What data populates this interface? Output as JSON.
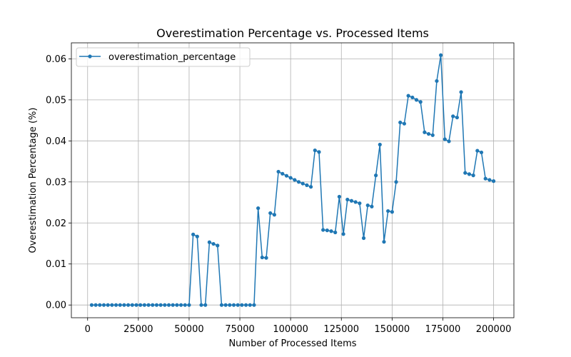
{
  "chart_data": {
    "type": "line",
    "title": "Overestimation Percentage vs. Processed Items",
    "xlabel": "Number of Processed Items",
    "ylabel": "Overestimation Percentage (%)",
    "xlim": [
      -8000,
      210000
    ],
    "ylim": [
      -0.0031,
      0.0639
    ],
    "grid": true,
    "legend_placement": "top-left",
    "x_ticks": [
      {
        "value": 0,
        "label": "0"
      },
      {
        "value": 25000,
        "label": "25000"
      },
      {
        "value": 50000,
        "label": "50000"
      },
      {
        "value": 75000,
        "label": "75000"
      },
      {
        "value": 100000,
        "label": "100000"
      },
      {
        "value": 125000,
        "label": "125000"
      },
      {
        "value": 150000,
        "label": "150000"
      },
      {
        "value": 175000,
        "label": "175000"
      },
      {
        "value": 200000,
        "label": "200000"
      }
    ],
    "y_ticks": [
      {
        "value": 0.0,
        "label": "0.00"
      },
      {
        "value": 0.01,
        "label": "0.01"
      },
      {
        "value": 0.02,
        "label": "0.02"
      },
      {
        "value": 0.03,
        "label": "0.03"
      },
      {
        "value": 0.04,
        "label": "0.04"
      },
      {
        "value": 0.05,
        "label": "0.05"
      },
      {
        "value": 0.06,
        "label": "0.06"
      }
    ],
    "series": [
      {
        "name": "overestimation_percentage",
        "color": "#1f77b4",
        "marker": "circle",
        "x": [
          2000,
          4000,
          6000,
          8000,
          10000,
          12000,
          14000,
          16000,
          18000,
          20000,
          22000,
          24000,
          26000,
          28000,
          30000,
          32000,
          34000,
          36000,
          38000,
          40000,
          42000,
          44000,
          46000,
          48000,
          50000,
          52000,
          54000,
          56000,
          58000,
          60000,
          62000,
          64000,
          66000,
          68000,
          70000,
          72000,
          74000,
          76000,
          78000,
          80000,
          82000,
          84000,
          86000,
          88000,
          90000,
          92000,
          94000,
          96000,
          98000,
          100000,
          102000,
          104000,
          106000,
          108000,
          110000,
          112000,
          114000,
          116000,
          118000,
          120000,
          122000,
          124000,
          126000,
          128000,
          130000,
          132000,
          134000,
          136000,
          138000,
          140000,
          142000,
          144000,
          146000,
          148000,
          150000,
          152000,
          154000,
          156000,
          158000,
          160000,
          162000,
          164000,
          166000,
          168000,
          170000,
          172000,
          174000,
          176000,
          178000,
          180000,
          182000,
          184000,
          186000,
          188000,
          190000,
          192000,
          194000,
          196000,
          198000,
          200000
        ],
        "y": [
          0,
          0,
          0,
          0,
          0,
          0,
          0,
          0,
          0,
          0,
          0,
          0,
          0,
          0,
          0,
          0,
          0,
          0,
          0,
          0,
          0,
          0,
          0,
          0,
          0,
          0.0172,
          0.0167,
          0,
          0,
          0.0153,
          0.0149,
          0.0145,
          0,
          0,
          0,
          0,
          0,
          0,
          0,
          0,
          0,
          0.0236,
          0.0116,
          0.0115,
          0.0224,
          0.022,
          0.0325,
          0.032,
          0.0315,
          0.031,
          0.0305,
          0.03,
          0.0296,
          0.0292,
          0.0288,
          0.0377,
          0.0373,
          0.0183,
          0.0182,
          0.018,
          0.0177,
          0.0264,
          0.0173,
          0.0257,
          0.0254,
          0.0251,
          0.0248,
          0.0163,
          0.0243,
          0.024,
          0.0316,
          0.0391,
          0.0154,
          0.0229,
          0.0227,
          0.03,
          0.0445,
          0.0442,
          0.051,
          0.0506,
          0.05,
          0.0495,
          0.0421,
          0.0417,
          0.0414,
          0.0546,
          0.0609,
          0.0404,
          0.0399,
          0.046,
          0.0457,
          0.0519,
          0.0322,
          0.0319,
          0.0316,
          0.0376,
          0.0372,
          0.0308,
          0.0305,
          0.0302
        ]
      }
    ]
  }
}
